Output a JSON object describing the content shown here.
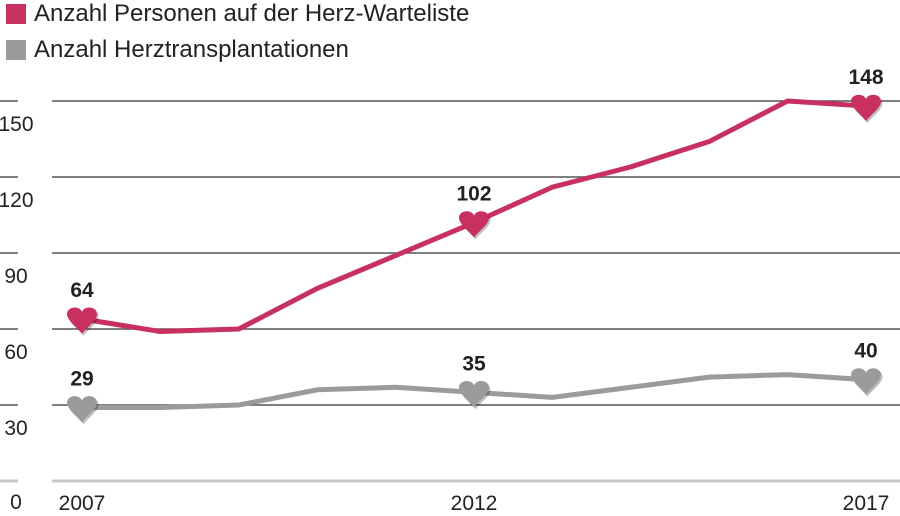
{
  "chart_data": {
    "type": "line",
    "title": "",
    "xlabel": "",
    "ylabel": "",
    "x": [
      2007,
      2008,
      2009,
      2010,
      2011,
      2012,
      2013,
      2014,
      2015,
      2016,
      2017
    ],
    "x_tick_labels": [
      "2007",
      "2012",
      "2017"
    ],
    "y_ticks": [
      0,
      30,
      60,
      90,
      120,
      150
    ],
    "y_tick_labels": [
      "0",
      "30",
      "60",
      "90",
      "120",
      "150"
    ],
    "ylim": [
      0,
      150
    ],
    "grid": true,
    "legend_placement": "top-left",
    "series": [
      {
        "name": "Anzahl Personen auf der Herz-Warteliste",
        "color": "#c8305f",
        "values": [
          64,
          59,
          60,
          76,
          89,
          102,
          116,
          124,
          134,
          150,
          148
        ],
        "labeled_points": {
          "2007": "64",
          "2012": "102",
          "2017": "148"
        }
      },
      {
        "name": "Anzahl Herztransplantationen",
        "color": "#9b9b9b",
        "values": [
          29,
          29,
          30,
          36,
          37,
          35,
          33,
          37,
          41,
          42,
          40
        ],
        "labeled_points": {
          "2007": "29",
          "2012": "35",
          "2017": "40"
        }
      }
    ],
    "marker": "heart-icon"
  }
}
